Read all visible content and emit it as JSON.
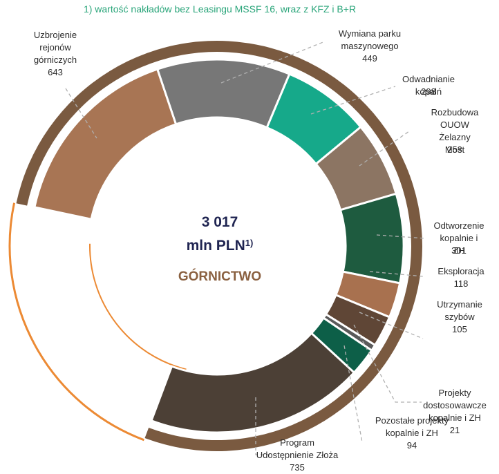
{
  "chart_data": {
    "type": "donut",
    "note": "1) wartość nakładów bez Leasingu MSSF 16, wraz z KFZ i B+R",
    "total": {
      "value": 3017,
      "label": "3 017"
    },
    "unit": "mln PLN",
    "unit_note": "1)",
    "center_label": "GÓRNICTWO",
    "categories": [
      "Uzbrojenie\nrejonów\ngórniczych",
      "Wymiana parku\nmaszynowego",
      "Odwadnianie kopalń",
      "Rozbudowa\nOUOW\nŻelazny Most",
      "Odtworzenie\nkopalnie i ZH",
      "Eksploracja",
      "Utrzymanie\nszybów",
      "Projekty\ndostosowawcze\nkopalnie i ZH",
      "Pozostałe projekty\nkopalnie i ZH",
      "Program\nUdostępnienie Złoża"
    ],
    "values": [
      643,
      449,
      298,
      253,
      301,
      118,
      105,
      21,
      94,
      735
    ],
    "colors": [
      "#a87554",
      "#777777",
      "#16a98a",
      "#8c7563",
      "#1e5b3f",
      "#a8714f",
      "#5f4636",
      "#5a5a5a",
      "#0d5f48",
      "#4c4036"
    ]
  }
}
